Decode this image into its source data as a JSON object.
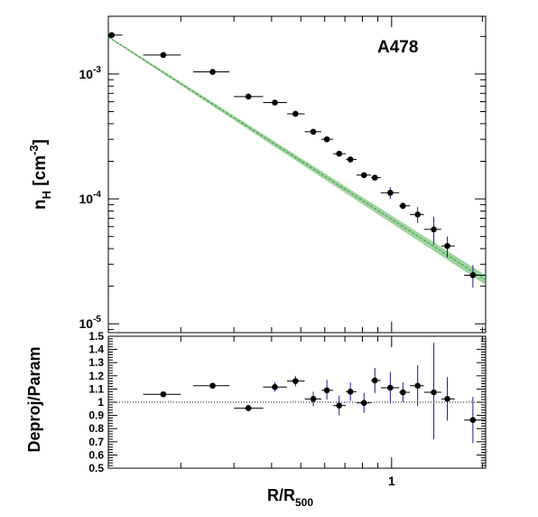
{
  "chart_data": [
    {
      "type": "scatter",
      "panel": "upper",
      "annotation": "A478",
      "ylabel": "n_H [cm^-3]",
      "ylabel_main": "n",
      "ylabel_sub": "H",
      "ylabel_rest": " [cm",
      "ylabel_sup": "-3",
      "ylabel_close": "]",
      "yscale": "log",
      "xscale": "log",
      "xlim": [
        0.115,
        2.05
      ],
      "ylim": [
        8.5e-06,
        0.0029
      ],
      "y_ticks": [
        {
          "value": 1e-05,
          "base": "10",
          "exp": "-5"
        },
        {
          "value": 0.0001,
          "base": "10",
          "exp": "-4"
        },
        {
          "value": 0.001,
          "base": "10",
          "exp": "-3"
        }
      ],
      "series": [
        {
          "markers": "points",
          "points": [
            {
              "x": 0.118,
              "x_lo": 0.11,
              "x_hi": 0.128,
              "y": 0.00205
            },
            {
              "x": 0.175,
              "x_lo": 0.15,
              "x_hi": 0.2,
              "y": 0.00142
            },
            {
              "x": 0.255,
              "x_lo": 0.22,
              "x_hi": 0.29,
              "y": 0.00104
            },
            {
              "x": 0.335,
              "x_lo": 0.3,
              "x_hi": 0.375,
              "y": 0.00066
            },
            {
              "x": 0.41,
              "x_lo": 0.375,
              "x_hi": 0.45,
              "y": 0.00059
            },
            {
              "x": 0.48,
              "x_lo": 0.45,
              "x_hi": 0.515,
              "y": 0.00048
            },
            {
              "x": 0.55,
              "x_lo": 0.515,
              "x_hi": 0.585,
              "y": 0.000345
            },
            {
              "x": 0.61,
              "x_lo": 0.585,
              "x_hi": 0.64,
              "y": 0.0003
            },
            {
              "x": 0.67,
              "x_lo": 0.64,
              "x_hi": 0.705,
              "y": 0.00023
            },
            {
              "x": 0.73,
              "x_lo": 0.705,
              "x_hi": 0.765,
              "y": 0.000207
            },
            {
              "x": 0.81,
              "x_lo": 0.765,
              "x_hi": 0.855,
              "y": 0.000155
            },
            {
              "x": 0.88,
              "x_lo": 0.855,
              "x_hi": 0.92,
              "y": 0.000148
            },
            {
              "x": 0.99,
              "x_lo": 0.92,
              "x_hi": 1.06,
              "y": 0.000112,
              "y_lo": 0.0001,
              "y_hi": 0.000124
            },
            {
              "x": 1.09,
              "x_lo": 1.06,
              "x_hi": 1.15,
              "y": 8.8e-05,
              "y_lo": 8.3e-05,
              "y_hi": 9.4e-05
            },
            {
              "x": 1.22,
              "x_lo": 1.15,
              "x_hi": 1.28,
              "y": 7.5e-05,
              "y_lo": 6.4e-05,
              "y_hi": 8.6e-05
            },
            {
              "x": 1.38,
              "x_lo": 1.28,
              "x_hi": 1.46,
              "y": 5.7e-05,
              "y_lo": 4.3e-05,
              "y_hi": 7.2e-05
            },
            {
              "x": 1.53,
              "x_lo": 1.46,
              "x_hi": 1.62,
              "y": 4.2e-05,
              "y_lo": 3.4e-05,
              "y_hi": 5e-05
            },
            {
              "x": 1.86,
              "x_lo": 1.74,
              "x_hi": 2.05,
              "y": 2.45e-05,
              "y_lo": 1.95e-05,
              "y_hi": 2.95e-05
            }
          ]
        },
        {
          "markers": "band",
          "color": "#2ca02c",
          "x": [
            0.115,
            2.05
          ],
          "y": [
            0.00198,
            2.25e-05
          ],
          "y_lo": [
            0.00195,
            2.05e-05
          ],
          "y_hi": [
            0.00201,
            2.45e-05
          ]
        }
      ]
    },
    {
      "type": "scatter",
      "panel": "lower",
      "ylabel": "Deproj/Param",
      "xlabel": "R/R_500",
      "xlabel_main": "R/R",
      "xlabel_sub": "500",
      "xscale": "log",
      "xlim": [
        0.115,
        2.05
      ],
      "ylim": [
        0.5,
        1.5
      ],
      "reference_line": 1.0,
      "x_ticks": [
        {
          "value": 1,
          "label": "1"
        }
      ],
      "y_ticks": [
        {
          "value": 0.5,
          "label": "0.5"
        },
        {
          "value": 0.6,
          "label": "0.6"
        },
        {
          "value": 0.7,
          "label": "0.7"
        },
        {
          "value": 0.8,
          "label": "0.8"
        },
        {
          "value": 0.9,
          "label": "0.9"
        },
        {
          "value": 1.0,
          "label": "1"
        },
        {
          "value": 1.1,
          "label": "1.1"
        },
        {
          "value": 1.2,
          "label": "1.2"
        },
        {
          "value": 1.3,
          "label": "1.3"
        },
        {
          "value": 1.4,
          "label": "1.4"
        },
        {
          "value": 1.5,
          "label": "1.5"
        }
      ],
      "series": [
        {
          "markers": "points",
          "points": [
            {
              "x": 0.175,
              "x_lo": 0.15,
              "x_hi": 0.2,
              "y": 1.06
            },
            {
              "x": 0.255,
              "x_lo": 0.22,
              "x_hi": 0.29,
              "y": 1.125
            },
            {
              "x": 0.335,
              "x_lo": 0.3,
              "x_hi": 0.375,
              "y": 0.955,
              "y_lo": 0.93,
              "y_hi": 0.98
            },
            {
              "x": 0.41,
              "x_lo": 0.375,
              "x_hi": 0.45,
              "y": 1.115,
              "y_lo": 1.08,
              "y_hi": 1.15
            },
            {
              "x": 0.48,
              "x_lo": 0.45,
              "x_hi": 0.515,
              "y": 1.16,
              "y_lo": 1.12,
              "y_hi": 1.2
            },
            {
              "x": 0.55,
              "x_lo": 0.515,
              "x_hi": 0.585,
              "y": 1.025,
              "y_lo": 0.97,
              "y_hi": 1.08
            },
            {
              "x": 0.61,
              "x_lo": 0.585,
              "x_hi": 0.64,
              "y": 1.09,
              "y_lo": 1.02,
              "y_hi": 1.17
            },
            {
              "x": 0.67,
              "x_lo": 0.64,
              "x_hi": 0.705,
              "y": 0.975,
              "y_lo": 0.9,
              "y_hi": 1.05
            },
            {
              "x": 0.73,
              "x_lo": 0.705,
              "x_hi": 0.765,
              "y": 1.08,
              "y_lo": 1.01,
              "y_hi": 1.15
            },
            {
              "x": 0.81,
              "x_lo": 0.765,
              "x_hi": 0.855,
              "y": 0.995,
              "y_lo": 0.92,
              "y_hi": 1.07
            },
            {
              "x": 0.88,
              "x_lo": 0.855,
              "x_hi": 0.92,
              "y": 1.165,
              "y_lo": 1.07,
              "y_hi": 1.26
            },
            {
              "x": 0.99,
              "x_lo": 0.92,
              "x_hi": 1.06,
              "y": 1.11,
              "y_lo": 0.99,
              "y_hi": 1.23
            },
            {
              "x": 1.09,
              "x_lo": 1.06,
              "x_hi": 1.15,
              "y": 1.075,
              "y_lo": 1.0,
              "y_hi": 1.15
            },
            {
              "x": 1.22,
              "x_lo": 1.15,
              "x_hi": 1.28,
              "y": 1.125,
              "y_lo": 0.97,
              "y_hi": 1.28
            },
            {
              "x": 1.38,
              "x_lo": 1.28,
              "x_hi": 1.46,
              "y": 1.075,
              "y_lo": 0.72,
              "y_hi": 1.45
            },
            {
              "x": 1.53,
              "x_lo": 1.46,
              "x_hi": 1.62,
              "y": 1.025,
              "y_lo": 0.86,
              "y_hi": 1.19
            },
            {
              "x": 1.86,
              "x_lo": 1.74,
              "x_hi": 2.05,
              "y": 0.865,
              "y_lo": 0.69,
              "y_hi": 1.04
            }
          ]
        }
      ]
    }
  ]
}
